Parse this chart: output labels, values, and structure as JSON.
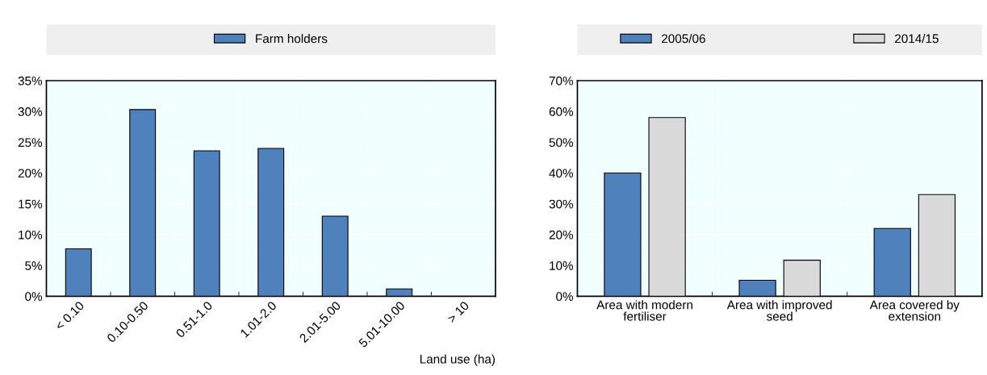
{
  "chart_data": [
    {
      "type": "bar",
      "xlabel": "Land use (ha)",
      "categories": [
        "< 0.10",
        "0.10-0.50",
        "0.51-1.0",
        "1.01-2.0",
        "2.01-5.00",
        "5.01-10.00",
        "> 10"
      ],
      "series": [
        {
          "name": "Farm holders",
          "color": "#4f81bd",
          "values": [
            7.7,
            30.3,
            23.6,
            24.0,
            13.0,
            1.2,
            null
          ]
        }
      ],
      "ylim": [
        0,
        35
      ],
      "yticks": [
        {
          "value": 0,
          "label": "0%"
        },
        {
          "value": 5,
          "label": "5%"
        },
        {
          "value": 10,
          "label": "10%"
        },
        {
          "value": 15,
          "label": "15%"
        },
        {
          "value": 20,
          "label": "20%"
        },
        {
          "value": 25,
          "label": "25%"
        },
        {
          "value": 30,
          "label": "30%"
        },
        {
          "value": 35,
          "label": "35%"
        }
      ],
      "grid": true,
      "legend": "top"
    },
    {
      "type": "bar",
      "categories": [
        "Area with modern fertiliser",
        "Area with improved seed",
        "Area covered by extension"
      ],
      "series": [
        {
          "name": "2005/06",
          "color": "#4f81bd",
          "values": [
            40,
            5.2,
            22
          ]
        },
        {
          "name": "2014/15",
          "color": "#dadada",
          "values": [
            58,
            11.7,
            33
          ]
        }
      ],
      "ylim": [
        0,
        70
      ],
      "yticks": [
        {
          "value": 0,
          "label": "0%"
        },
        {
          "value": 10,
          "label": "10%"
        },
        {
          "value": 20,
          "label": "20%"
        },
        {
          "value": 30,
          "label": "30%"
        },
        {
          "value": 40,
          "label": "40%"
        },
        {
          "value": 50,
          "label": "50%"
        },
        {
          "value": 60,
          "label": "60%"
        },
        {
          "value": 70,
          "label": "70%"
        }
      ],
      "grid": true,
      "legend": "top"
    }
  ]
}
